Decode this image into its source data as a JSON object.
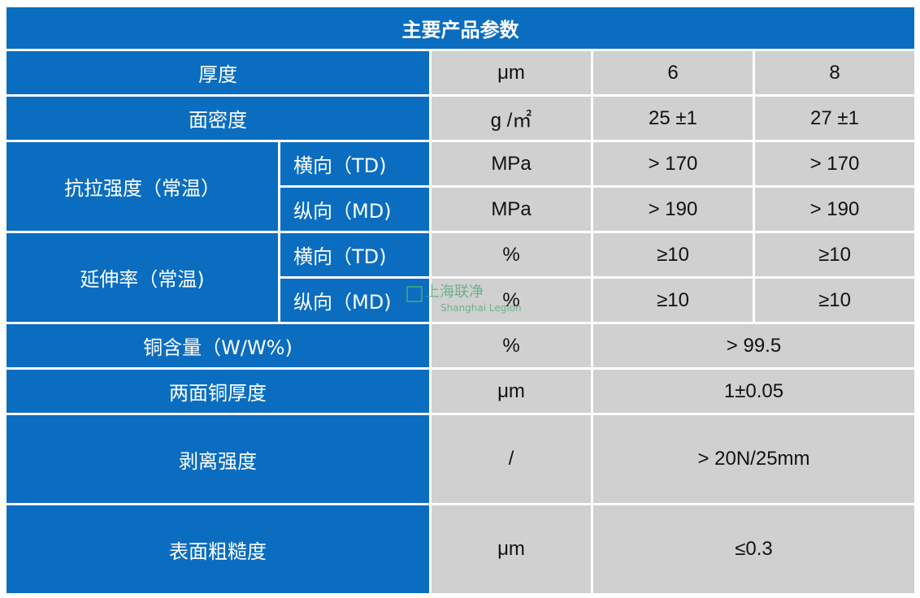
{
  "title": "主要产品参数",
  "rows": {
    "thickness": {
      "label": "厚度",
      "unit": "μm",
      "v6": "6",
      "v8": "8"
    },
    "areal_density": {
      "label": "面密度",
      "unit": "g /㎡",
      "v6": "25 ±1",
      "v8": "27 ±1"
    },
    "tensile": {
      "label": "抗拉强度（常温）",
      "td": {
        "label": "横向（TD)",
        "unit": "MPa",
        "v6": "> 170",
        "v8": "> 170"
      },
      "md": {
        "label": "纵向（MD)",
        "unit": "MPa",
        "v6": "> 190",
        "v8": "> 190"
      }
    },
    "elongation": {
      "label": "延伸率（常温)",
      "td": {
        "label": "横向（TD)",
        "unit": "%",
        "v6": "≥10",
        "v8": "≥10"
      },
      "md": {
        "label": "纵向（MD)",
        "unit": "%",
        "v6": "≥10",
        "v8": "≥10"
      }
    },
    "copper_content": {
      "label": "铜含量（W/W%)",
      "unit": "%",
      "value": "> 99.5"
    },
    "copper_thickness": {
      "label": "两面铜厚度",
      "unit": "μm",
      "value": "1±0.05"
    },
    "peel_strength": {
      "label": "剥离强度",
      "unit": "/",
      "value": "> 20N/25mm"
    },
    "roughness": {
      "label": "表面粗糙度",
      "unit": "μm",
      "value": "≤0.3"
    }
  },
  "watermark": {
    "cn": "上海联净",
    "en": "Shanghai Legion"
  }
}
